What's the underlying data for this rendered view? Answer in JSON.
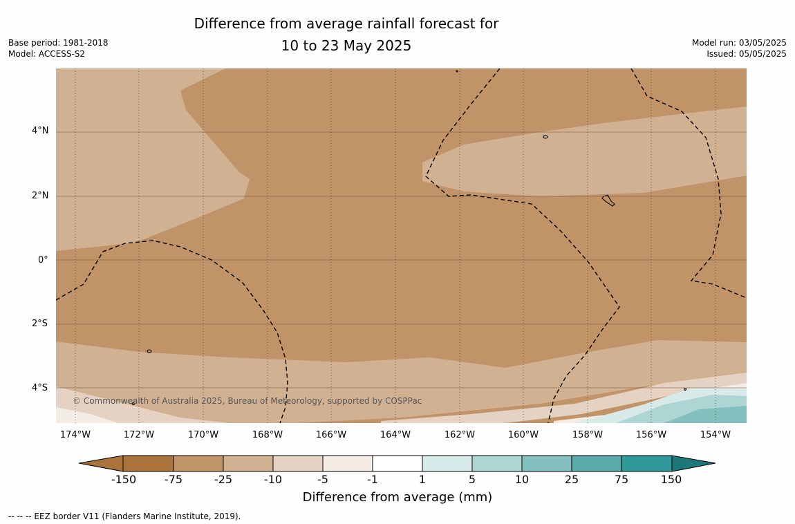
{
  "title": {
    "line1": "Difference from average rainfall forecast for",
    "line2": "10 to 23 May 2025"
  },
  "meta": {
    "base_period": "Base period: 1981-2018",
    "model": "Model: ACCESS-S2",
    "model_run": "Model run: 03/05/2025",
    "issued": "Issued: 05/05/2025"
  },
  "map": {
    "credit": "© Commonwealth of Australia 2025, Bureau of Meteorology, supported by COSPPac",
    "lat_labels": [
      "4°N",
      "2°N",
      "0°",
      "2°S",
      "4°S"
    ],
    "lon_labels": [
      "174°W",
      "172°W",
      "170°W",
      "168°W",
      "166°W",
      "164°W",
      "162°W",
      "160°W",
      "158°W",
      "156°W",
      "154°W"
    ]
  },
  "colorbar": {
    "title": "Difference from average (mm)",
    "ticks": [
      "-150",
      "-75",
      "-25",
      "-10",
      "-5",
      "-1",
      "1",
      "5",
      "10",
      "25",
      "75",
      "150"
    ],
    "colors": [
      "#ab733c",
      "#c19369",
      "#d0b293",
      "#e5d2c2",
      "#f4ede6",
      "#ffffff",
      "#d8eae8",
      "#acd5d4",
      "#83c0be",
      "#5aaaa8",
      "#30999a",
      "#1c7878"
    ]
  },
  "footnote": "--  --  -- EEZ border V11 (Flanders Marine Institute, 2019)."
}
